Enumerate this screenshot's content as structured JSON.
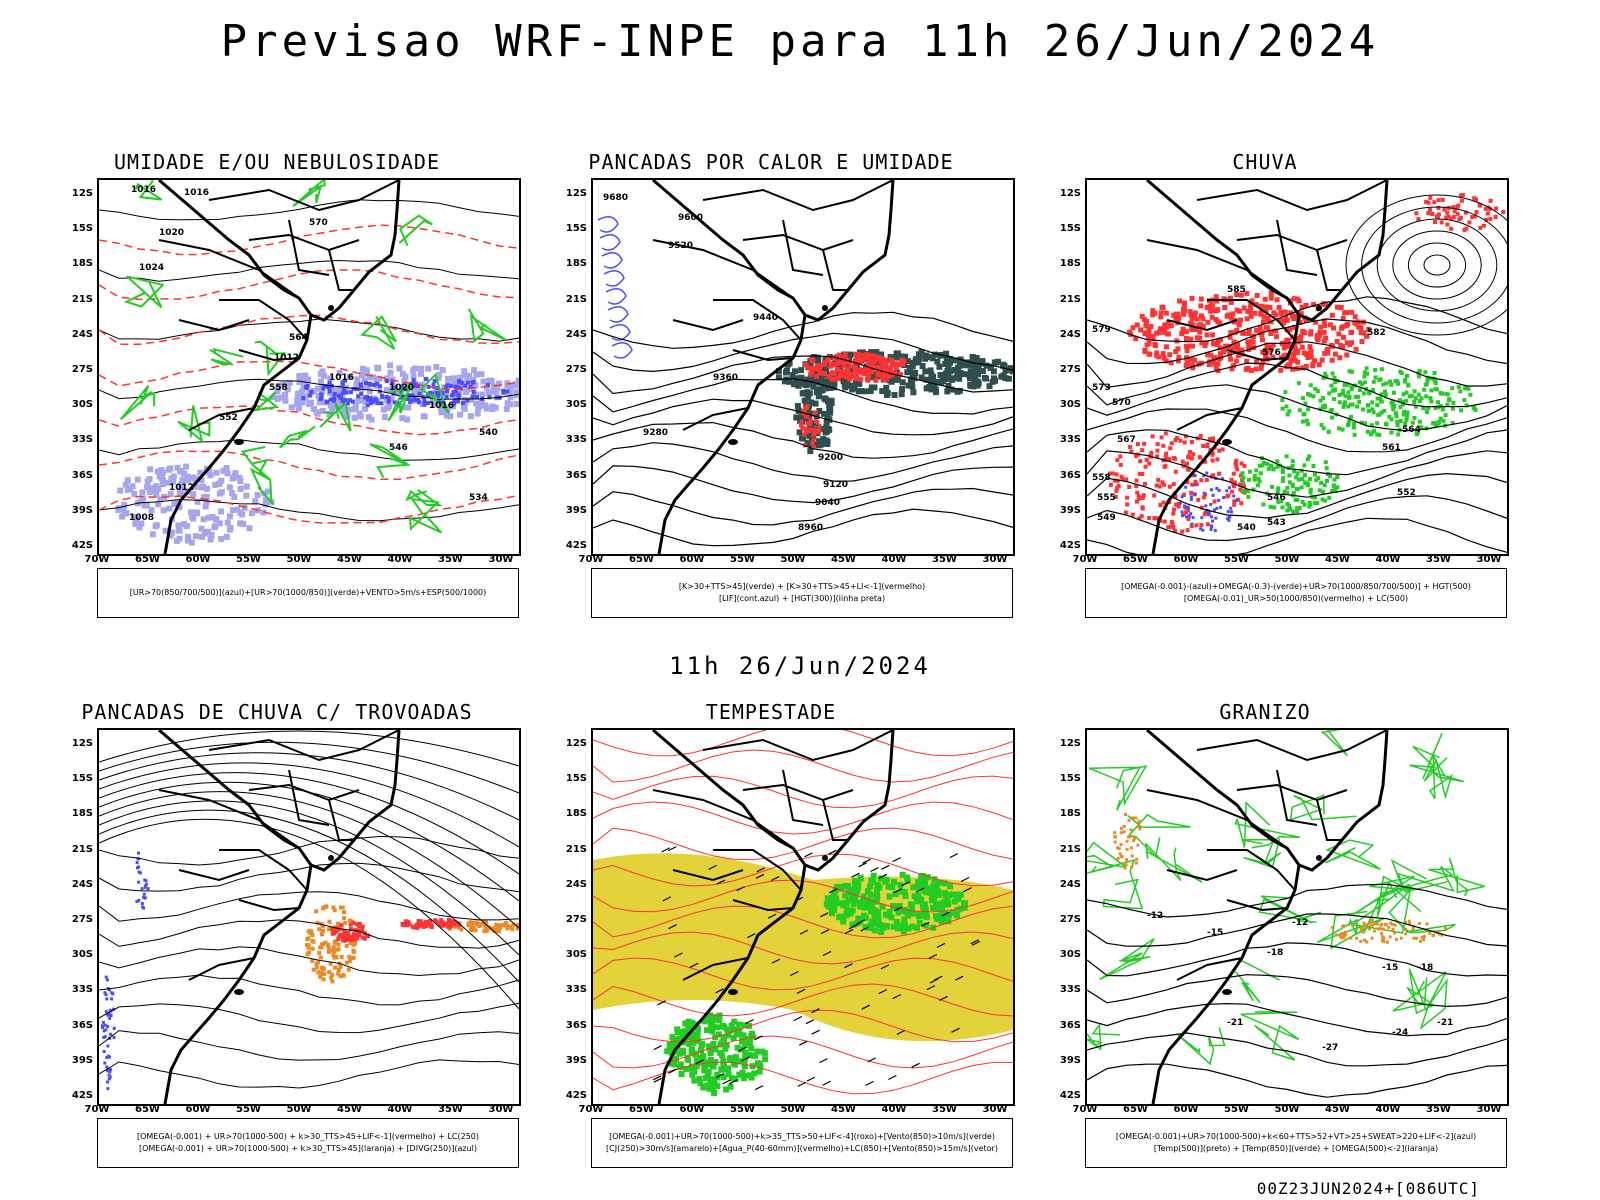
{
  "header": {
    "main_title": "Previsao WRF-INPE  para 11h 26/Jun/2024",
    "mid_time": "11h 26/Jun/2024",
    "footer_stamp": "00Z23JUN2024+[086UTC]"
  },
  "axes": {
    "lat_labels": [
      "12S",
      "15S",
      "18S",
      "21S",
      "24S",
      "27S",
      "30S",
      "33S",
      "36S",
      "39S",
      "42S"
    ],
    "lon_labels": [
      "70W",
      "65W",
      "60W",
      "55W",
      "50W",
      "45W",
      "40W",
      "35W",
      "30W"
    ]
  },
  "colors": {
    "blue": "#4b4bff",
    "green": "#22cc22",
    "red": "#ff3333",
    "dark_teal": "#2f4f4f",
    "yellow": "#e3d23a",
    "orange": "#ee8822",
    "lavender": "#a6a6ee"
  },
  "panels": [
    {
      "title": "UMIDADE E/OU NEBULOSIDADE",
      "caption_lines": [
        "[UR>70(850/700/500)](azul)+[UR>70(1000/850)](verde)+VENTO>5m/s+ESP(500/1000)"
      ]
    },
    {
      "title": "PANCADAS POR CALOR E UMIDADE",
      "caption_lines": [
        "[K>30+TTS>45](verde) + [K>30+TTS>45+LI<-1](vermelho)",
        "[LIF](cont.azul) + [HGT(300)](linha preta)"
      ]
    },
    {
      "title": "CHUVA",
      "caption_lines": [
        "[OMEGA(-0.001)-(azul)+OMEGA(-0.3)-(verde)+UR>70(1000/850/700/500)] + HGT(500)",
        "[OMEGA(-0.01)_UR>50(1000/850)(vermelho) + LC(500)"
      ]
    },
    {
      "title": "PANCADAS DE CHUVA C/ TROVOADAS",
      "caption_lines": [
        "[OMEGA(-0.001) + UR>70(1000-500) + k>30_TTS>45+LIF<-1](vermelho) + LC(250)",
        "[OMEGA(-0.001) + UR>70(1000-500) + k>30_TTS>45](laranja) + [DIVG(250)](azul)"
      ]
    },
    {
      "title": "TEMPESTADE",
      "caption_lines": [
        "[OMEGA(-0.001)+UR>70(1000-500)+k>35_TTS>50+LIF<-4](roxo)+[Vento(850)>10m/s](verde)",
        "[CJ(250)>30m/s](amarelo)+[Agua_P(40-60mm)](vermelho)+LC(850)+[Vento(850)>15m/s](vetor)"
      ]
    },
    {
      "title": "GRANIZO",
      "caption_lines": [
        "[OMEGA(-0.001)+UR>70(1000-500)+k<60+TTS>52+VT>25+SWEAT>220+LIF<-2](azul)",
        "[Temp(500)](preto) + [Temp(850)](verde) + [OMEGA(500)<-2](laranja)"
      ]
    }
  ],
  "contour_labels": {
    "p1": [
      "1016",
      "1016",
      "1020",
      "1024",
      "1012",
      "1016",
      "1020",
      "1016",
      "1012",
      "1008",
      "570",
      "564",
      "558",
      "552",
      "546",
      "540",
      "534"
    ],
    "p2": [
      "9680",
      "9600",
      "9520",
      "9440",
      "9360",
      "9280",
      "9200",
      "9120",
      "9040",
      "8960"
    ],
    "p3": [
      "585",
      "582",
      "579",
      "576",
      "573",
      "570",
      "567",
      "564",
      "561",
      "558",
      "555",
      "552",
      "549",
      "546",
      "543",
      "540"
    ],
    "p6": [
      "-12",
      "-15",
      "-18",
      "-21",
      "-24",
      "-27",
      "-12",
      "-15",
      "-18",
      "-21"
    ]
  }
}
